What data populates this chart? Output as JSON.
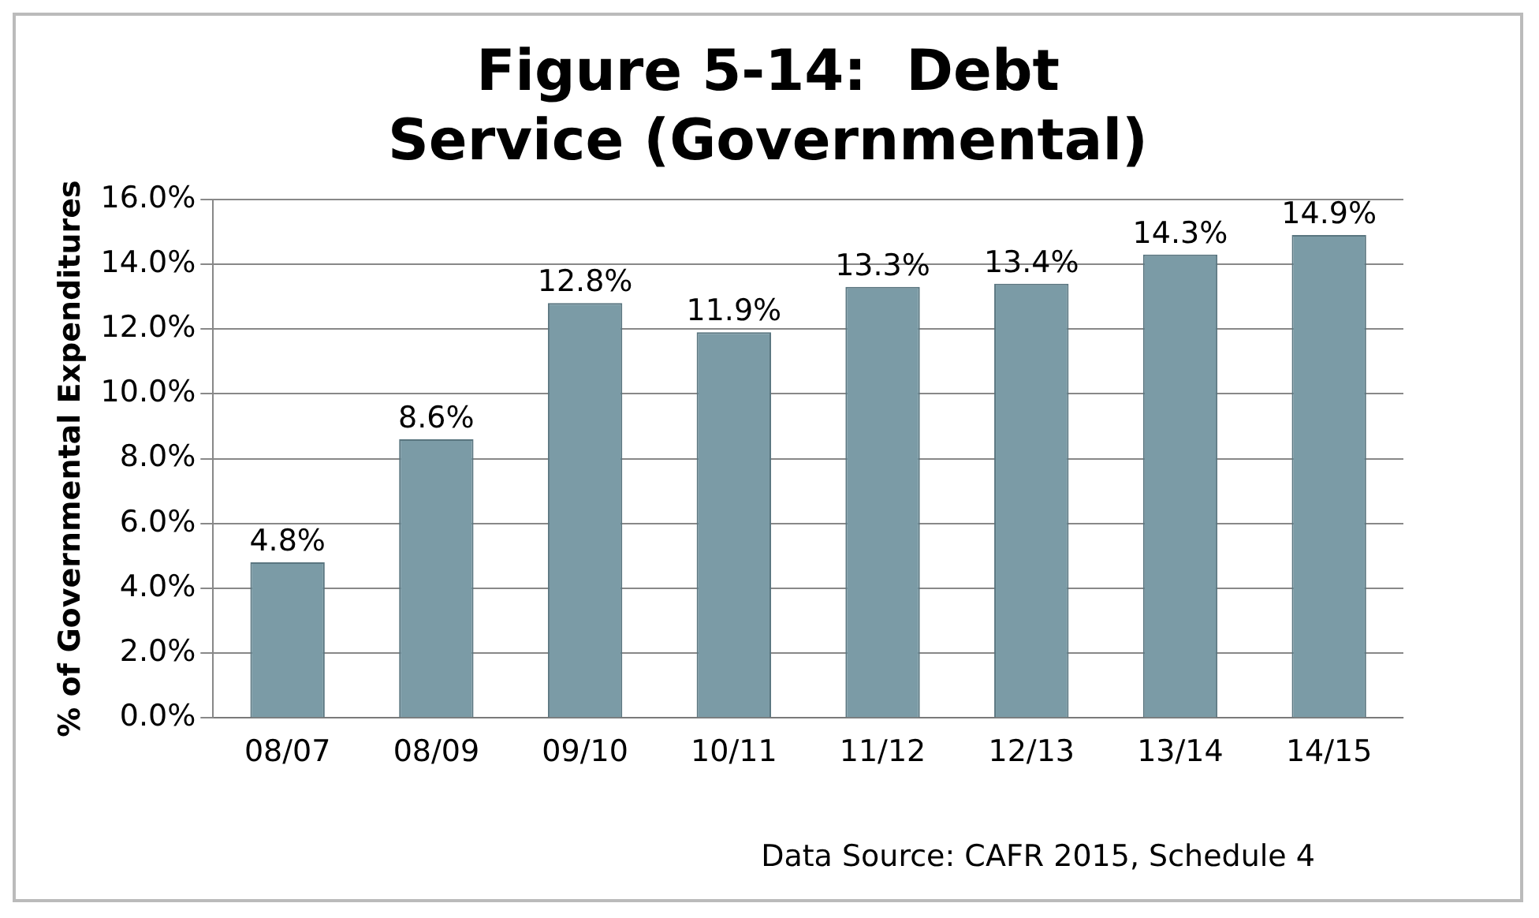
{
  "chart_data": {
    "type": "bar",
    "title": "Figure 5-14:  Debt Service (Governmental)",
    "ylabel": "% of Governmental Expenditures",
    "categories": [
      "08/07",
      "08/09",
      "09/10",
      "10/11",
      "11/12",
      "12/13",
      "13/14",
      "14/15"
    ],
    "values": [
      4.8,
      8.6,
      12.8,
      11.9,
      13.3,
      13.4,
      14.3,
      14.9
    ],
    "color": "#7b9ba6",
    "ylim": [
      0,
      16
    ],
    "yticks": [
      {
        "value": 0,
        "label": "0.0%"
      },
      {
        "value": 2,
        "label": "2.0%"
      },
      {
        "value": 4,
        "label": "4.0%"
      },
      {
        "value": 6,
        "label": "6.0%"
      },
      {
        "value": 8,
        "label": "8.0%"
      },
      {
        "value": 10,
        "label": "10.0%"
      },
      {
        "value": 12,
        "label": "12.0%"
      },
      {
        "value": 14,
        "label": "14.0%"
      },
      {
        "value": 16,
        "label": "16.0%"
      }
    ],
    "value_labels": [
      "4.8%",
      "8.6%",
      "12.8%",
      "11.9%",
      "13.3%",
      "13.4%",
      "14.3%",
      "14.9%"
    ],
    "grid": "y",
    "annotations": [
      "Data Source: CAFR 2015, Schedule 4"
    ]
  }
}
